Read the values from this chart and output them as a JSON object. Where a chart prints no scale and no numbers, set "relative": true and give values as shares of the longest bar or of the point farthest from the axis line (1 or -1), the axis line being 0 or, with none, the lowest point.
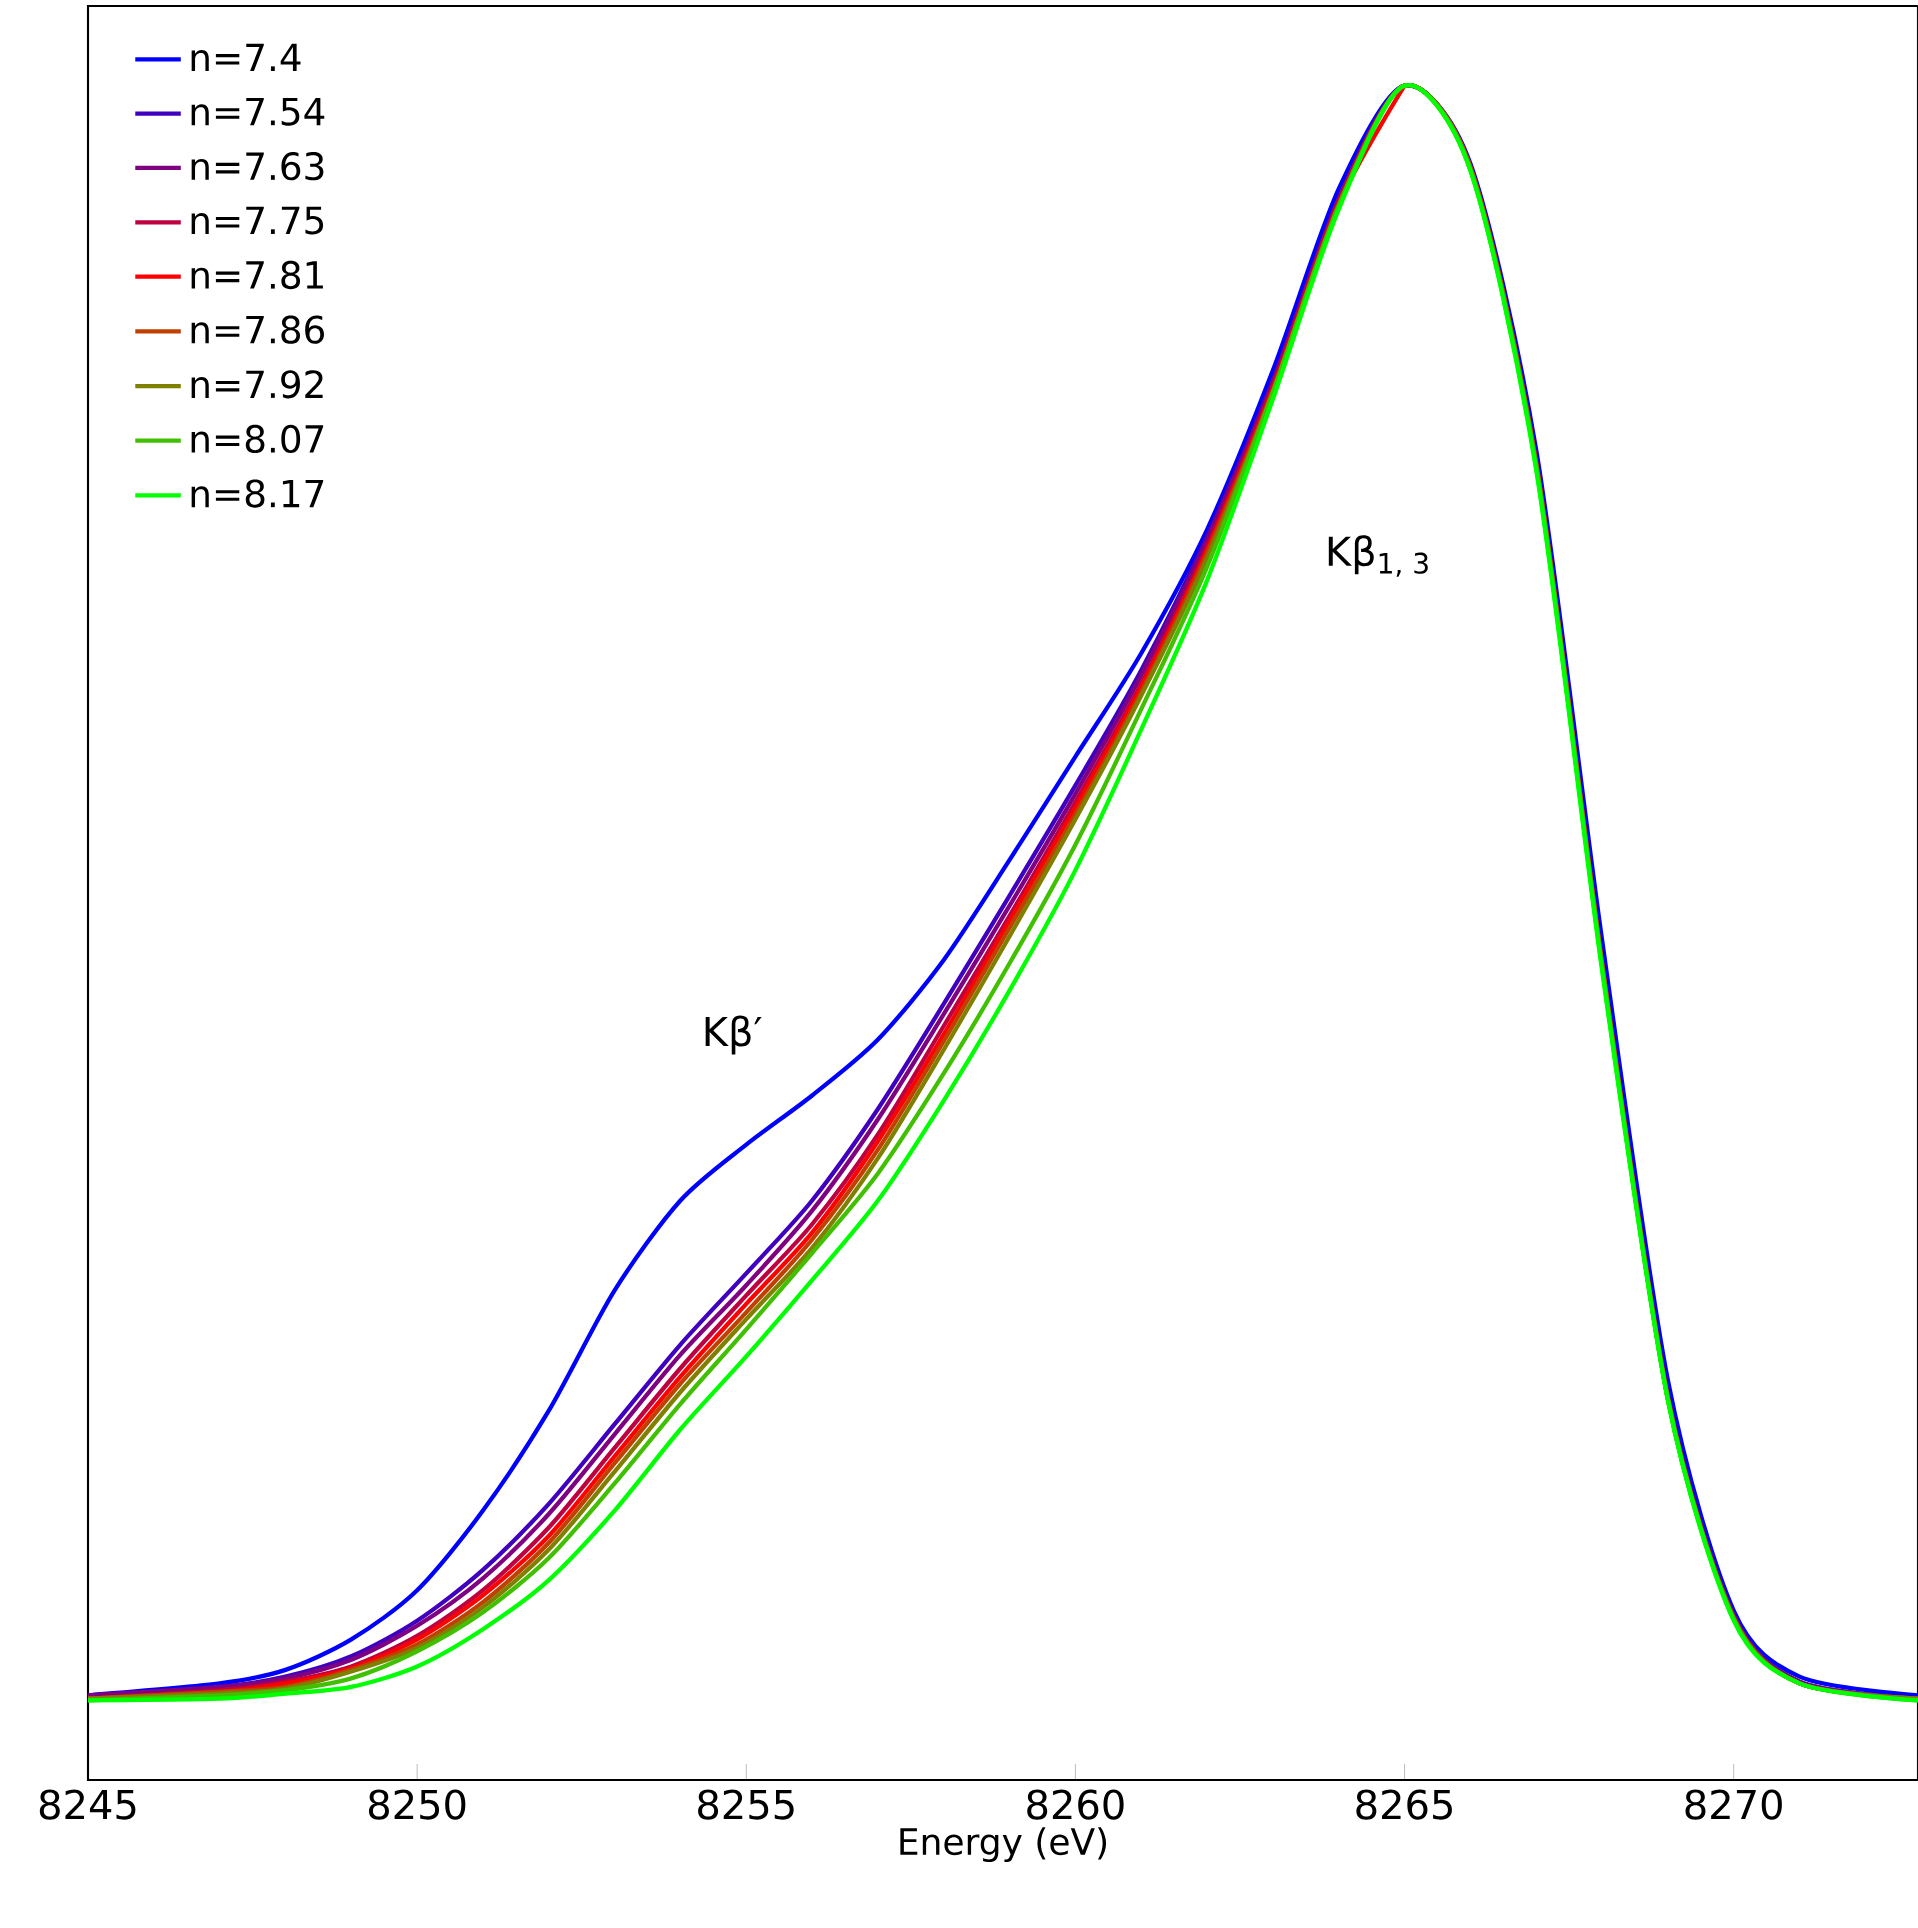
{
  "chart_data": {
    "type": "line",
    "relative": true,
    "xlabel": "Energy (eV)",
    "xlim": [
      8245,
      8272.8
    ],
    "xticks": [
      8245,
      8250,
      8255,
      8260,
      8265,
      8270
    ],
    "x": [
      8245,
      8247,
      8248,
      8249,
      8250,
      8251,
      8252,
      8253,
      8254,
      8255,
      8256,
      8257,
      8258,
      8259,
      8260,
      8261,
      8262,
      8263,
      8264,
      8265,
      8266,
      8267,
      8268,
      8269,
      8270,
      8271,
      8272.8
    ],
    "legend": "top left",
    "line_style": "solid",
    "series": [
      {
        "name": "n=7.4",
        "color": "#0000ff",
        "values": [
          0.05,
          0.057,
          0.065,
          0.083,
          0.112,
          0.159,
          0.218,
          0.289,
          0.342,
          0.375,
          0.404,
          0.437,
          0.484,
          0.543,
          0.604,
          0.665,
          0.738,
          0.832,
          0.939,
          1.0,
          0.954,
          0.785,
          0.496,
          0.236,
          0.1,
          0.061,
          0.05
        ]
      },
      {
        "name": "n=7.54",
        "color": "#3f00bf",
        "values": [
          0.05,
          0.055,
          0.061,
          0.073,
          0.094,
          0.124,
          0.163,
          0.21,
          0.257,
          0.299,
          0.342,
          0.396,
          0.458,
          0.522,
          0.587,
          0.655,
          0.734,
          0.826,
          0.933,
          1.0,
          0.952,
          0.779,
          0.484,
          0.228,
          0.097,
          0.058,
          0.048
        ]
      },
      {
        "name": "n=7.63",
        "color": "#7f0080",
        "values": [
          0.05,
          0.055,
          0.06,
          0.071,
          0.091,
          0.119,
          0.157,
          0.204,
          0.251,
          0.292,
          0.336,
          0.39,
          0.452,
          0.516,
          0.582,
          0.652,
          0.732,
          0.825,
          0.933,
          1.0,
          0.952,
          0.778,
          0.483,
          0.227,
          0.097,
          0.058,
          0.048
        ]
      },
      {
        "name": "n=7.75",
        "color": "#bf0040",
        "values": [
          0.048,
          0.053,
          0.058,
          0.067,
          0.085,
          0.112,
          0.149,
          0.196,
          0.243,
          0.286,
          0.328,
          0.381,
          0.445,
          0.51,
          0.577,
          0.647,
          0.728,
          0.823,
          0.932,
          1.0,
          0.952,
          0.777,
          0.482,
          0.225,
          0.096,
          0.057,
          0.048
        ]
      },
      {
        "name": "n=7.81",
        "color": "#ff0000",
        "values": [
          0.048,
          0.052,
          0.057,
          0.066,
          0.083,
          0.109,
          0.144,
          0.191,
          0.238,
          0.281,
          0.323,
          0.377,
          0.44,
          0.507,
          0.574,
          0.645,
          0.726,
          0.821,
          0.93,
          1.0,
          null,
          null,
          null,
          null,
          null,
          null,
          null
        ]
      },
      {
        "name": "n=7.86",
        "color": "#c04000",
        "values": [
          0.048,
          0.052,
          0.055,
          0.065,
          0.08,
          0.105,
          0.14,
          0.187,
          0.234,
          0.276,
          0.319,
          0.372,
          0.436,
          0.503,
          0.57,
          0.642,
          0.724,
          0.82,
          0.93,
          1.0,
          0.952,
          0.777,
          0.482,
          0.225,
          0.096,
          0.057,
          0.048
        ]
      },
      {
        "name": "n=7.92",
        "color": "#808000",
        "values": [
          0.048,
          0.051,
          0.054,
          0.064,
          0.078,
          0.102,
          0.136,
          0.182,
          0.229,
          0.272,
          0.314,
          0.367,
          0.431,
          0.498,
          0.567,
          0.64,
          0.721,
          0.819,
          0.929,
          1.0,
          0.951,
          0.776,
          0.481,
          0.225,
          0.095,
          0.057,
          0.048
        ]
      },
      {
        "name": "n=8.07",
        "color": "#40c000",
        "values": [
          0.047,
          0.05,
          0.053,
          0.06,
          0.076,
          0.099,
          0.131,
          0.175,
          0.222,
          0.266,
          0.311,
          0.358,
          0.417,
          0.482,
          0.552,
          0.632,
          0.716,
          0.819,
          0.929,
          1.0,
          0.95,
          0.775,
          0.48,
          0.225,
          0.095,
          0.057,
          0.047
        ]
      },
      {
        "name": "n=8.17",
        "color": "#00ff00",
        "values": [
          0.047,
          0.048,
          0.051,
          0.055,
          0.067,
          0.089,
          0.118,
          0.159,
          0.207,
          0.25,
          0.295,
          0.342,
          0.401,
          0.466,
          0.537,
          0.62,
          0.708,
          0.815,
          0.927,
          1.0,
          0.95,
          0.773,
          0.478,
          0.224,
          0.094,
          0.057,
          0.047
        ]
      }
    ],
    "annotations": [
      "Kβ′",
      "Kβ$_{1, 3}$"
    ]
  }
}
